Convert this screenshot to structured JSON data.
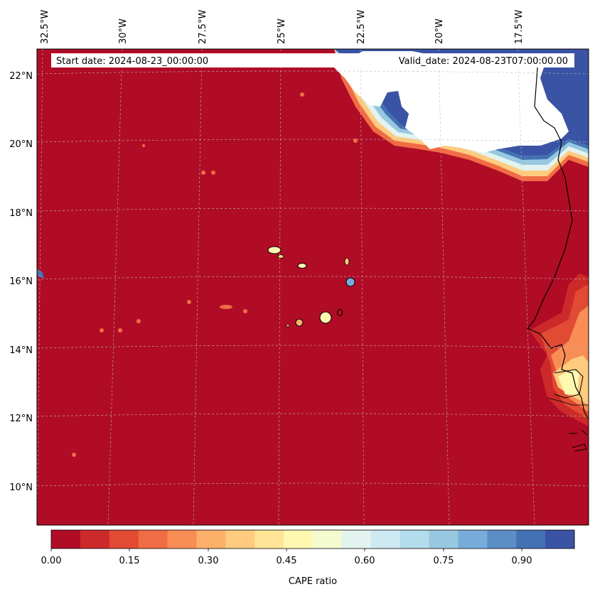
{
  "header": {
    "start_date": "Start date: 2024-08-23_00:00:00",
    "valid_date": "Valid_date: 2024-08-23T07:00:00.00"
  },
  "longitude_labels": [
    "32.5°W",
    "30°W",
    "27.5°W",
    "25°W",
    "22.5°W",
    "20°W",
    "17.5°W"
  ],
  "latitude_labels": [
    "22°N",
    "20°N",
    "18°N",
    "16°N",
    "14°N",
    "12°N",
    "10°N"
  ],
  "colorbar": {
    "title": "CAPE ratio",
    "tick_labels": [
      "0.00",
      "0.15",
      "0.30",
      "0.45",
      "0.60",
      "0.75",
      "0.90"
    ],
    "colors": [
      "#b10c26",
      "#cc2a2a",
      "#e14a33",
      "#f06c45",
      "#f88d55",
      "#fdb06a",
      "#fecb7f",
      "#fee494",
      "#fef8b0",
      "#f4fbd0",
      "#e2f3f0",
      "#cde9f2",
      "#b3dcec",
      "#97c8e0",
      "#78addb",
      "#5b8ec5",
      "#4471b4",
      "#3a53a4"
    ]
  },
  "field": {
    "background_color": "#b10c26",
    "high_color": "#3a53a4",
    "mask_color": "#ffffff"
  }
}
